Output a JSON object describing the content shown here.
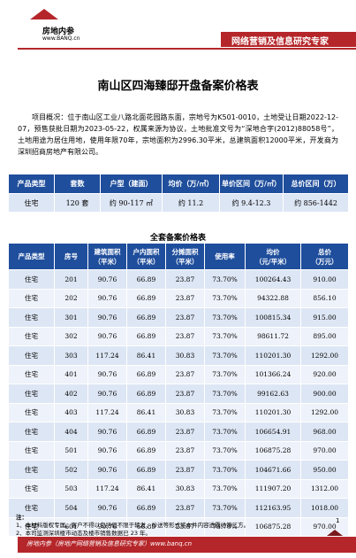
{
  "header": {
    "logo_name": "房地内参",
    "logo_url": "www.BANQ.cn",
    "slogan": "网络营销及信息研究专家"
  },
  "title": "南山区四海臻邸开盘备案价格表",
  "overview": "项目概况：位于南山区工业八路北面花园路东面，宗地号为K501-0010，土地受让日期2022-12-07，预售获批日期为2023-05-22，权属来源为协议，土地批准文号为“深地合字(2012)88058号”，土地用途为居住用地，使用年限70年，宗地面积为2996.30平米，总建筑面积12000平米，开发商为深圳招商房地产有限公司。",
  "summary": {
    "headers": [
      "产品类型",
      "套数",
      "户型（建面）",
      "均价（万/㎡）",
      "单价区间（万/㎡）",
      "总价区间（万）"
    ],
    "row": [
      "住宅",
      "120 套",
      "约 90-117 ㎡",
      "约 11.2",
      "约 9.4-12.3",
      "约 856-1442"
    ]
  },
  "subtitle": "全套备案价格表",
  "detail": {
    "headers": [
      "产品类型",
      "房号",
      "建筑面积\n（平米）",
      "户内面积\n（平米）",
      "分摊面积\n（平米）",
      "使用率",
      "均价\n（元/平米）",
      "总价\n（万元）"
    ],
    "rows": [
      [
        "住宅",
        "201",
        "90.76",
        "66.89",
        "23.87",
        "73.70%",
        "100264.43",
        "910.00"
      ],
      [
        "住宅",
        "202",
        "90.76",
        "66.89",
        "23.87",
        "73.70%",
        "94322.88",
        "856.10"
      ],
      [
        "住宅",
        "301",
        "90.76",
        "66.89",
        "23.87",
        "73.70%",
        "100815.34",
        "915.00"
      ],
      [
        "住宅",
        "302",
        "90.76",
        "66.89",
        "23.87",
        "73.70%",
        "98611.72",
        "895.00"
      ],
      [
        "住宅",
        "303",
        "117.24",
        "86.41",
        "30.83",
        "73.70%",
        "110201.30",
        "1292.00"
      ],
      [
        "住宅",
        "401",
        "90.76",
        "66.89",
        "23.87",
        "73.70%",
        "101366.24",
        "920.00"
      ],
      [
        "住宅",
        "402",
        "90.76",
        "66.89",
        "23.87",
        "73.70%",
        "99162.63",
        "900.00"
      ],
      [
        "住宅",
        "403",
        "117.24",
        "86.41",
        "30.83",
        "73.70%",
        "110201.30",
        "1292.00"
      ],
      [
        "住宅",
        "404",
        "90.76",
        "66.89",
        "23.87",
        "73.70%",
        "106654.91",
        "968.00"
      ],
      [
        "住宅",
        "501",
        "90.76",
        "66.89",
        "23.87",
        "73.70%",
        "106875.28",
        "970.00"
      ],
      [
        "住宅",
        "502",
        "90.76",
        "66.89",
        "23.87",
        "73.70%",
        "104671.66",
        "950.00"
      ],
      [
        "住宅",
        "503",
        "117.24",
        "86.41",
        "30.83",
        "73.70%",
        "111907.20",
        "1312.00"
      ],
      [
        "住宅",
        "504",
        "90.76",
        "66.89",
        "23.87",
        "73.70%",
        "112163.95",
        "1018.00"
      ],
      [
        "住宅",
        "601",
        "90.76",
        "66.89",
        "23.87",
        "73.70%",
        "106875.28",
        "970.00"
      ]
    ]
  },
  "notes": {
    "head": "注：",
    "items": [
      "1、本材料版权专属，客户不得以包括但不限于转发、抄送等形式将本件内容透露给第三方。",
      "2、本司监测深圳楼市动态及楼市销售数据已 23 年。"
    ]
  },
  "page_number": "1",
  "footer": "房地内参（房地产网络营销及信息研究专家）www.banq.cn",
  "colors": {
    "brand_red": "#b5262a",
    "table_header_blue": "#1f4e9c",
    "table_cell_blue": "#dde6f4"
  }
}
